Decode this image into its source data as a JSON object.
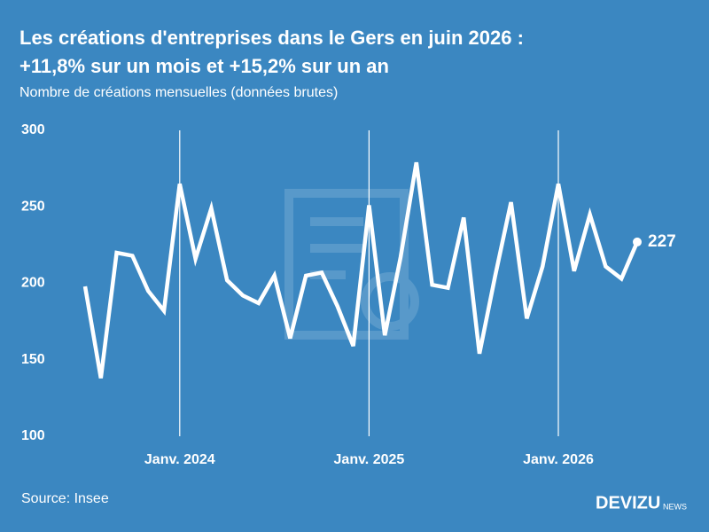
{
  "chart_data": {
    "type": "line",
    "title": [
      "Les créations d'entreprises dans le Gers en juin 2026 :",
      "+11,8% sur un mois et +15,2% sur un an"
    ],
    "subtitle": "Nombre de créations mensuelles (données brutes)",
    "source": "Source: Insee",
    "brand": "DEVIZU",
    "brand_suffix": "NEWS",
    "categories": [
      null,
      null,
      null,
      null,
      null,
      null,
      "Janv. 2024",
      null,
      null,
      null,
      null,
      null,
      null,
      null,
      null,
      null,
      null,
      null,
      "Janv. 2025",
      null,
      null,
      null,
      null,
      null,
      null,
      null,
      null,
      null,
      null,
      null,
      "Janv. 2026",
      null,
      null,
      null,
      null,
      null
    ],
    "series": [
      {
        "name": "Créations",
        "color": "#ffffff",
        "values": [
          198,
          138,
          220,
          218,
          195,
          182,
          265,
          216,
          249,
          202,
          192,
          187,
          205,
          164,
          205,
          207,
          185,
          159,
          251,
          166,
          217,
          279,
          199,
          197,
          243,
          154,
          205,
          253,
          177,
          211,
          265,
          208,
          245,
          211,
          203,
          227
        ]
      }
    ],
    "ylim": [
      100,
      300
    ],
    "yticks": [
      100,
      150,
      200,
      250,
      300
    ],
    "grid": false
  }
}
